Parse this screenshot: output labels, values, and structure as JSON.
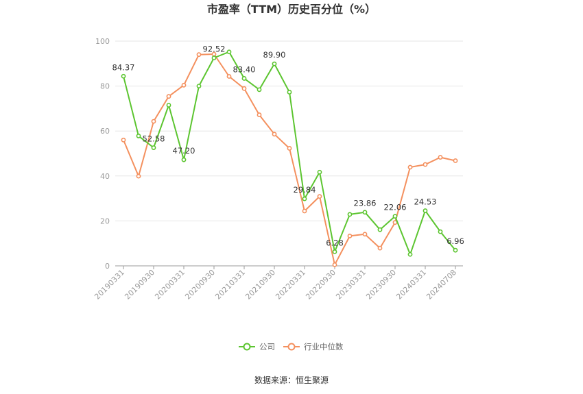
{
  "chart_data": {
    "type": "line",
    "title": "市盈率（TTM）历史百分位（%）",
    "ylim": [
      0,
      100
    ],
    "yticks": [
      0,
      20,
      40,
      60,
      80,
      100
    ],
    "x_tick_labels": [
      "20190331",
      "20190930",
      "20200331",
      "20200930",
      "20210331",
      "20210930",
      "20220331",
      "20220930",
      "20230331",
      "20230930",
      "20240331",
      "20240708"
    ],
    "x": [
      "20190331",
      "20190630",
      "20190930",
      "20191231",
      "20200331",
      "20200630",
      "20200930",
      "20201231",
      "20210331",
      "20210630",
      "20210930",
      "20211231",
      "20220331",
      "20220630",
      "20220930",
      "20221231",
      "20230331",
      "20230630",
      "20230930",
      "20231231",
      "20240331",
      "20240630",
      "20240708"
    ],
    "series": [
      {
        "name": "公司",
        "color": "#5cc530",
        "values": [
          84.37,
          57.8,
          52.58,
          71.5,
          47.2,
          80.0,
          92.52,
          95.2,
          83.4,
          78.4,
          89.9,
          77.3,
          29.84,
          41.7,
          6.28,
          22.9,
          23.86,
          16.1,
          22.06,
          5.1,
          24.53,
          15.2,
          6.96
        ]
      },
      {
        "name": "行业中位数",
        "color": "#f4905e",
        "values": [
          56.0,
          39.9,
          64.3,
          75.4,
          80.4,
          94.0,
          94.2,
          84.3,
          78.9,
          67.2,
          58.6,
          52.3,
          24.4,
          30.9,
          0.5,
          13.3,
          14.1,
          7.9,
          19.3,
          43.9,
          45.1,
          48.3,
          46.8
        ]
      }
    ],
    "data_labels": [
      {
        "series": 0,
        "index": 0,
        "text": "84.37"
      },
      {
        "series": 0,
        "index": 2,
        "text": "52.58"
      },
      {
        "series": 0,
        "index": 4,
        "text": "47.20"
      },
      {
        "series": 0,
        "index": 6,
        "text": "92.52"
      },
      {
        "series": 0,
        "index": 8,
        "text": "83.40"
      },
      {
        "series": 0,
        "index": 10,
        "text": "89.90"
      },
      {
        "series": 0,
        "index": 12,
        "text": "29.84"
      },
      {
        "series": 0,
        "index": 14,
        "text": "6.28"
      },
      {
        "series": 0,
        "index": 16,
        "text": "23.86"
      },
      {
        "series": 0,
        "index": 18,
        "text": "22.06"
      },
      {
        "series": 0,
        "index": 20,
        "text": "24.53"
      },
      {
        "series": 0,
        "index": 22,
        "text": "6.96"
      }
    ],
    "grid": true,
    "legend_position": "bottom"
  },
  "source": "数据来源：恒生聚源"
}
